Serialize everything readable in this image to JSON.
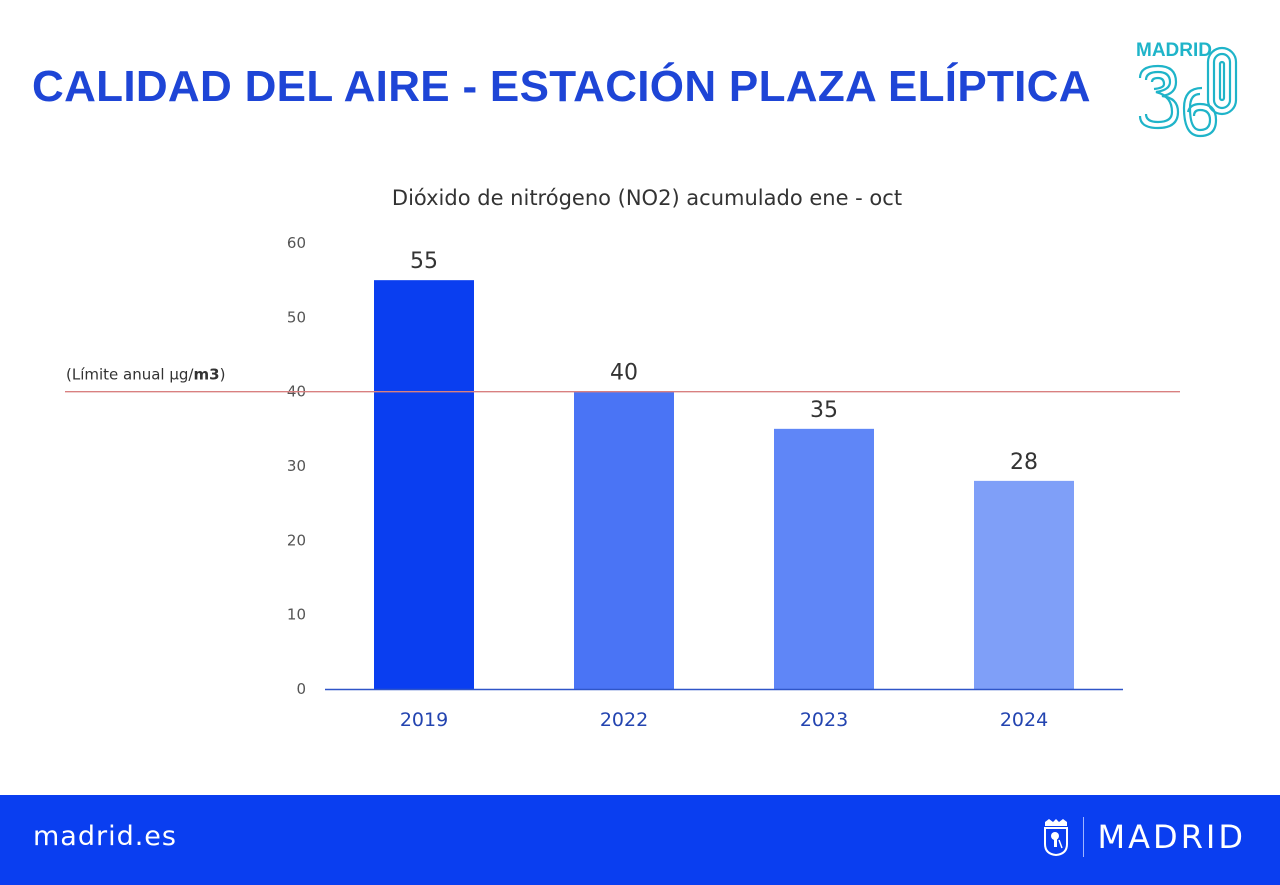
{
  "header": {
    "title": "CALIDAD DEL AIRE - ESTACIÓN PLAZA ELÍPTICA",
    "logo_text": "MADRID",
    "logo_number": "360"
  },
  "colors": {
    "brand_blue": "#0a3ef0",
    "title_blue": "#1e45d6",
    "logo_teal": "#1fb4c9",
    "limit_line": "#d98080"
  },
  "chart_data": {
    "type": "bar",
    "title": "Dióxido de nitrógeno (NO2) acumulado ene - oct",
    "categories": [
      "2019",
      "2022",
      "2023",
      "2024"
    ],
    "values": [
      55,
      40,
      35,
      28
    ],
    "bar_colors": [
      "#0a3ef0",
      "#4a74f5",
      "#5f86f7",
      "#7f9ff8"
    ],
    "xlabel": "",
    "ylabel": "",
    "ylim": [
      0,
      60
    ],
    "yticks": [
      0,
      10,
      20,
      30,
      40,
      50,
      60
    ],
    "grid": false,
    "reference_line": {
      "value": 40,
      "label_prefix": "(Límite anual µg/",
      "label_bold": "m3",
      "label_suffix": ")"
    }
  },
  "footer": {
    "url": "madrid.es",
    "brand": "MADRID"
  }
}
